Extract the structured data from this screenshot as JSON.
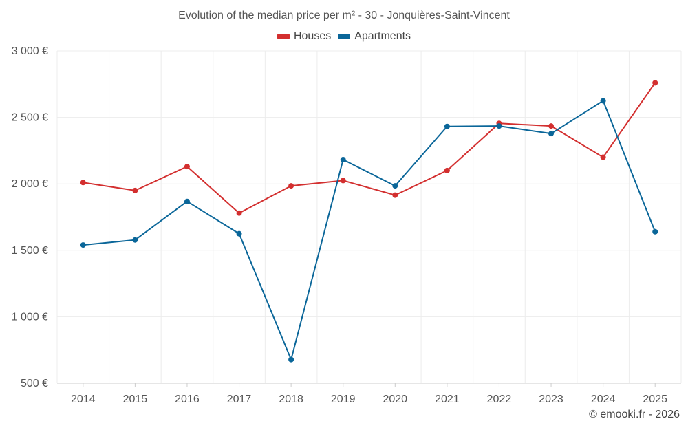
{
  "chart_data": {
    "type": "line",
    "title": "Evolution of the median price per m² - 30 - Jonquières-Saint-Vincent",
    "categories": [
      "2014",
      "2015",
      "2016",
      "2017",
      "2018",
      "2019",
      "2020",
      "2021",
      "2022",
      "2023",
      "2024",
      "2025"
    ],
    "series": [
      {
        "name": "Houses",
        "color": "#d32f2f",
        "values": [
          2010,
          1950,
          2130,
          1780,
          1985,
          2025,
          1915,
          2100,
          2455,
          2435,
          2200,
          2760
        ]
      },
      {
        "name": "Apartments",
        "color": "#0a6699",
        "values": [
          1540,
          1578,
          1868,
          1625,
          678,
          2182,
          1985,
          2432,
          2435,
          2378,
          2625,
          1640
        ]
      }
    ],
    "y_ticks": [
      500,
      1000,
      1500,
      2000,
      2500,
      3000
    ],
    "y_tick_labels": [
      "500 €",
      "1 000 €",
      "1 500 €",
      "2 000 €",
      "2 500 €",
      "3 000 €"
    ],
    "ylim": [
      500,
      3000
    ],
    "xlabel": "",
    "ylabel": "",
    "grid": true,
    "legend_position": "top-center"
  },
  "credit": "© emooki.fr - 2026"
}
